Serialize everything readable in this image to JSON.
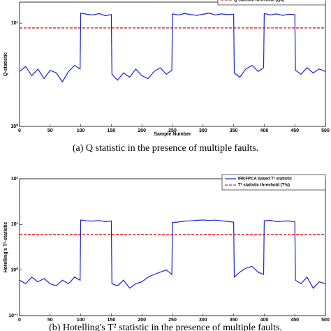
{
  "chart_data": [
    {
      "type": "line",
      "xlabel": "Sample Number",
      "ylabel": "Q-statistic",
      "log_y": true,
      "legend": "upper right",
      "caption": "(a) Q statistic in the presence of multiple faults.",
      "x": [
        0,
        10,
        20,
        30,
        40,
        50,
        60,
        70,
        80,
        90,
        99,
        100,
        110,
        120,
        130,
        140,
        150,
        151,
        160,
        170,
        180,
        190,
        200,
        210,
        220,
        230,
        240,
        249,
        250,
        260,
        270,
        280,
        290,
        300,
        310,
        320,
        330,
        340,
        350,
        351,
        360,
        370,
        380,
        390,
        399,
        400,
        410,
        420,
        430,
        440,
        450,
        451,
        460,
        470,
        480,
        490,
        500
      ],
      "series": [
        {
          "color": "#1a22d6",
          "values": [
            3.4,
            3.8,
            3.1,
            3.6,
            2.9,
            3.5,
            3.3,
            2.7,
            3.4,
            3.9,
            3.6,
            12.5,
            12.2,
            12.0,
            12.4,
            11.8,
            12.1,
            3.2,
            2.8,
            3.3,
            3.0,
            3.6,
            3.1,
            2.9,
            3.4,
            3.7,
            3.2,
            3.5,
            12.3,
            12.0,
            12.4,
            12.1,
            11.9,
            12.2,
            12.5,
            12.0,
            12.3,
            12.1,
            12.2,
            3.3,
            3.0,
            3.6,
            3.9,
            3.4,
            3.7,
            12.4,
            12.0,
            12.3,
            11.9,
            12.2,
            12.1,
            3.5,
            3.2,
            3.7,
            3.3,
            3.6,
            3.4
          ]
        }
      ],
      "threshold": {
        "name": "Q statistic threshold (Qα)",
        "value": 9,
        "color": "#e02020"
      },
      "xlim": [
        0,
        500
      ],
      "xticks": [
        0,
        50,
        100,
        150,
        200,
        250,
        300,
        350,
        400,
        450,
        500
      ],
      "ylim": [
        1,
        16
      ],
      "yticks": [
        {
          "value": 1,
          "label": "10⁰"
        },
        {
          "value": 10,
          "label": "10¹"
        }
      ]
    },
    {
      "type": "line",
      "ylabel": "Hotelling's T²-statistic",
      "log_y": true,
      "legend": "upper right",
      "caption": "(b) Hotelling's T² statistic in the presence of multiple faults.",
      "x": [
        0,
        10,
        20,
        30,
        40,
        50,
        60,
        70,
        80,
        90,
        99,
        100,
        110,
        120,
        130,
        140,
        150,
        151,
        160,
        170,
        180,
        190,
        200,
        210,
        220,
        230,
        240,
        249,
        250,
        260,
        270,
        280,
        290,
        300,
        310,
        320,
        330,
        340,
        350,
        351,
        360,
        370,
        380,
        390,
        399,
        400,
        410,
        420,
        430,
        440,
        450,
        451,
        460,
        470,
        480,
        490,
        500
      ],
      "series": [
        {
          "name": "IRKFPCA based T² statistic",
          "color": "#1a22d6",
          "values": [
            0.6,
            0.5,
            0.7,
            0.55,
            0.65,
            0.5,
            0.45,
            0.6,
            0.5,
            0.7,
            0.6,
            12.5,
            12.0,
            11.8,
            12.2,
            11.5,
            11.9,
            0.5,
            0.45,
            0.6,
            0.4,
            0.5,
            0.55,
            0.7,
            0.8,
            0.9,
            1.0,
            0.8,
            11.0,
            11.3,
            11.8,
            12.0,
            12.3,
            12.5,
            12.2,
            12.4,
            12.0,
            11.6,
            11.2,
            0.7,
            0.9,
            1.1,
            1.2,
            0.9,
            0.8,
            12.0,
            12.3,
            11.5,
            11.8,
            11.9,
            11.4,
            0.6,
            0.5,
            0.7,
            0.4,
            0.55,
            0.5
          ]
        }
      ],
      "threshold": {
        "name": "T² statistic threshold (T²α)",
        "value": 6,
        "color": "#e02020"
      },
      "xlim": [
        0,
        500
      ],
      "xticks": [
        0,
        50,
        100,
        150,
        200,
        250,
        300,
        350,
        400,
        450,
        500
      ],
      "ylim": [
        0.1,
        100
      ],
      "yticks": [
        {
          "value": 0.1,
          "label": "10⁻¹"
        },
        {
          "value": 1,
          "label": "10⁰"
        },
        {
          "value": 10,
          "label": "10¹"
        },
        {
          "value": 100,
          "label": "10²"
        }
      ]
    }
  ]
}
